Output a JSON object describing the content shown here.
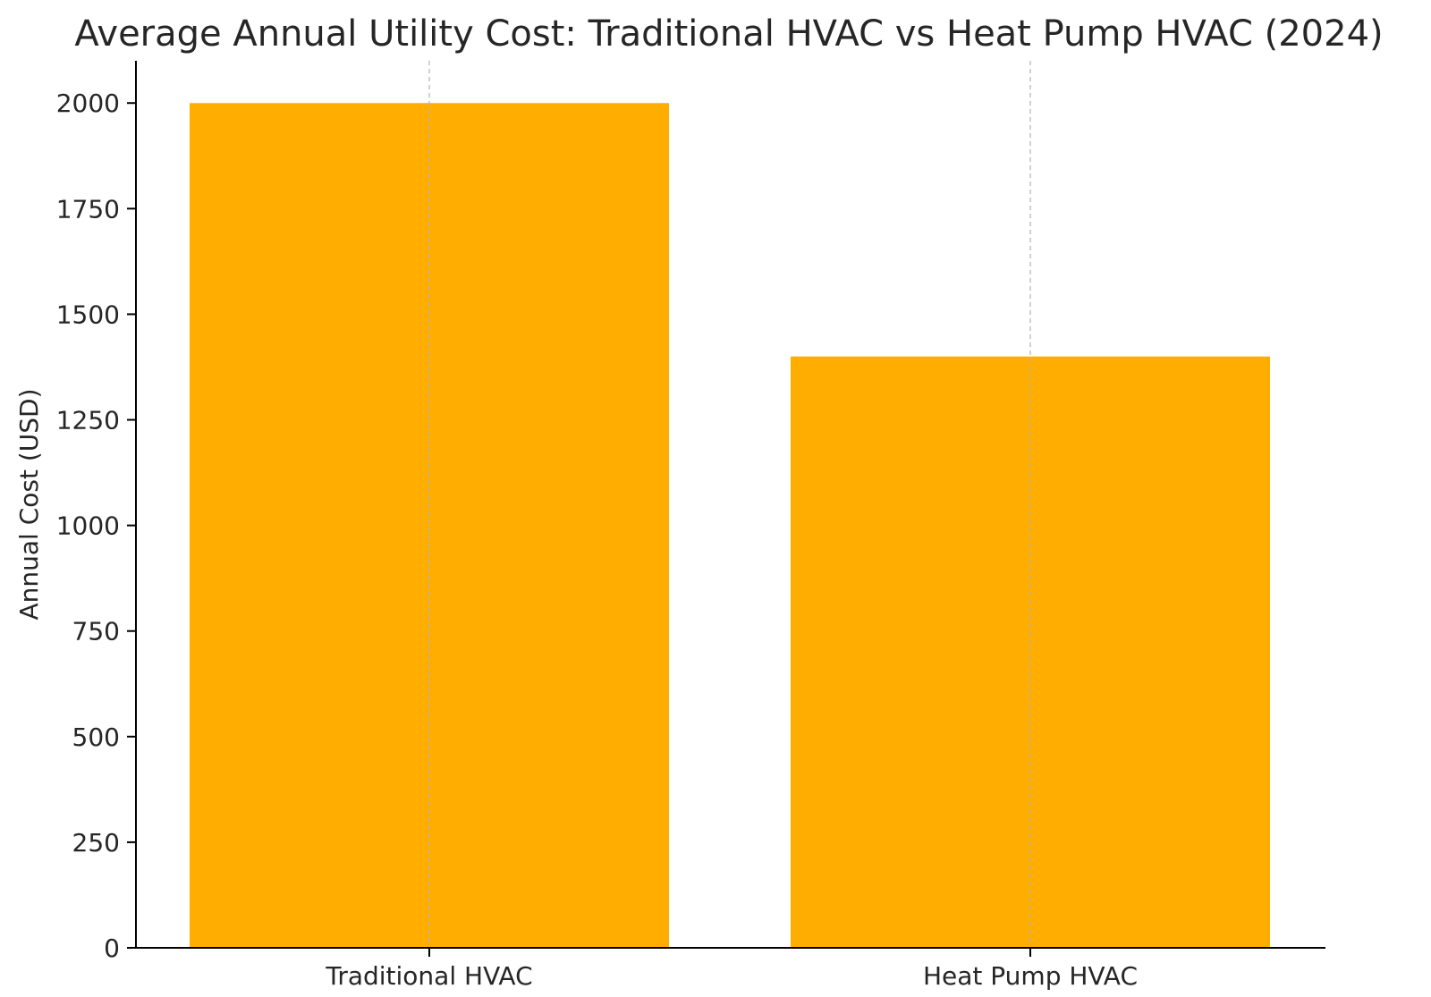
{
  "chart_data": {
    "type": "bar",
    "title": "Average Annual Utility Cost: Traditional HVAC vs Heat Pump HVAC (2024)",
    "xlabel": "",
    "ylabel": "Annual Cost (USD)",
    "categories": [
      "Traditional HVAC",
      "Heat Pump HVAC"
    ],
    "values": [
      2000,
      1400
    ],
    "ylim": [
      0,
      2100
    ],
    "yticks": [
      0,
      250,
      500,
      750,
      1000,
      1250,
      1500,
      1750,
      2000
    ],
    "grid": "x-axis only, dashed",
    "legend": "none",
    "bar_color": "#FFAE00",
    "grid_color": "#B0B0B0",
    "axis_color": "#000000"
  }
}
